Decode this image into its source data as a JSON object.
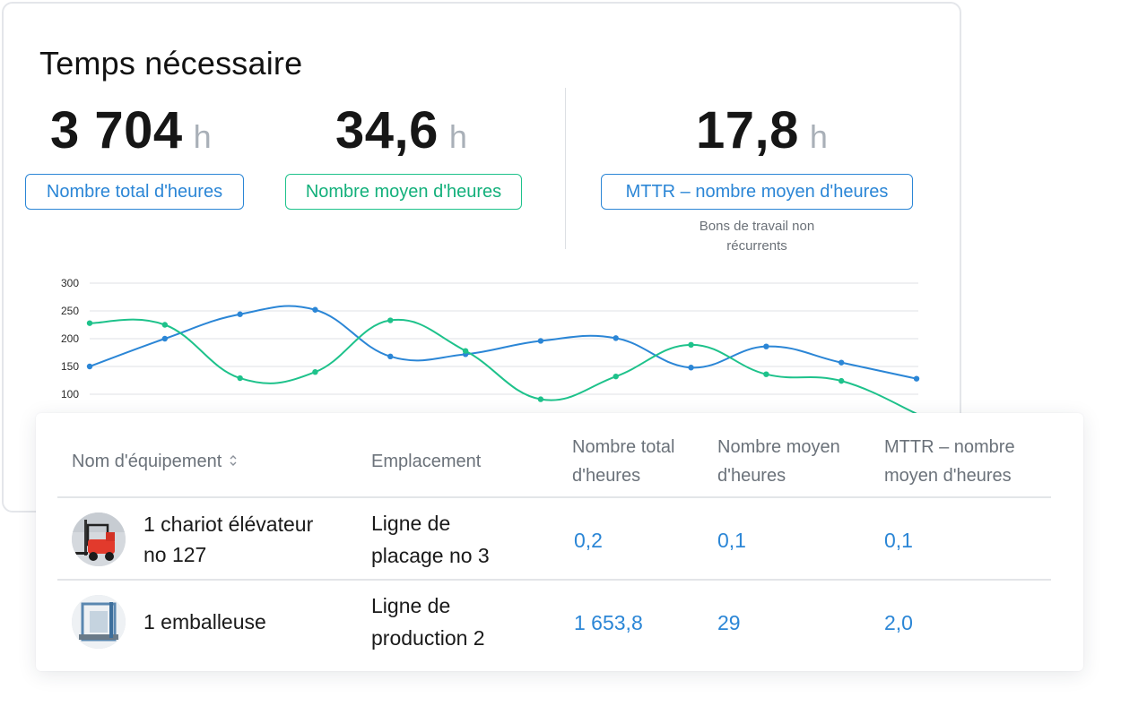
{
  "title": "Temps nécessaire",
  "metrics": [
    {
      "value": "3 704",
      "unit": "h",
      "label": "Nombre total d'heures",
      "color": "#2b86d6"
    },
    {
      "value": "34,6",
      "unit": "h",
      "label": "Nombre moyen d'heures",
      "color": "#1ec28b"
    },
    {
      "value": "17,8",
      "unit": "h",
      "label": "MTTR – nombre moyen d'heures",
      "color": "#2b86d6",
      "note": "Bons de travail non récurrents"
    }
  ],
  "chart_data": {
    "type": "line",
    "y_ticks": [
      "300",
      "250",
      "200",
      "150",
      "100"
    ],
    "ylim": [
      100,
      300
    ],
    "grid": true,
    "series": [
      {
        "color": "#2b86d6",
        "values": [
          150,
          200,
          244,
          252,
          168,
          172,
          196,
          201,
          148,
          186,
          157,
          128
        ]
      },
      {
        "color": "#1ec28b",
        "values": [
          228,
          225,
          129,
          140,
          233,
          178,
          91,
          132,
          189,
          136,
          124,
          65
        ]
      }
    ]
  },
  "table": {
    "headers": {
      "name": "Nom d'équipement",
      "location": "Emplacement",
      "total_line1": "Nombre total",
      "total_line2": "d'heures",
      "avg_line1": "Nombre moyen",
      "avg_line2": "d'heures",
      "mttr_line1": "MTTR – nombre",
      "mttr_line2": "moyen d'heures"
    },
    "sort_icon": "sort-icon",
    "rows": [
      {
        "name_line1": "1 chariot élévateur",
        "name_line2": "no 127",
        "loc_line1": "Ligne de",
        "loc_line2": "placage no 3",
        "total": "0,2",
        "avg": "0,1",
        "mttr": "0,1",
        "avatar_icon": "forklift-icon"
      },
      {
        "name_line1": "1 emballeuse",
        "loc_line1": "Ligne de",
        "loc_line2": "production 2",
        "total": "1 653,8",
        "avg": "29",
        "mttr": "2,0",
        "avatar_icon": "wrapping-machine-icon"
      }
    ]
  }
}
